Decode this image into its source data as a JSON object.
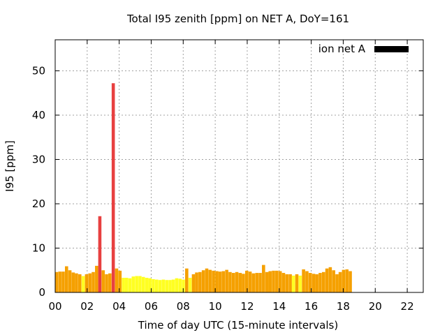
{
  "chart_data": {
    "type": "bar",
    "title": "Total I95 zenith [ppm] on NET A, DoY=161",
    "xlabel": "Time of day UTC (15-minute intervals)",
    "ylabel": "I95 [ppm]",
    "xlim": [
      0,
      23
    ],
    "ylim": [
      0,
      57
    ],
    "x_ticks": [
      "00",
      "02",
      "04",
      "06",
      "08",
      "10",
      "12",
      "14",
      "16",
      "18",
      "20",
      "22"
    ],
    "y_ticks": [
      "0",
      "10",
      "20",
      "30",
      "40",
      "50"
    ],
    "grid": true,
    "legend": {
      "label": "ion net A",
      "placement": "top-right",
      "swatch_color": "#000000"
    },
    "bar_width_hours": 0.2,
    "colors": {
      "high": "#e84040",
      "medium": "#f5a000",
      "low": "#ffff22"
    },
    "bars": [
      {
        "x": 0.08,
        "value": 4.6,
        "level": "medium"
      },
      {
        "x": 0.29,
        "value": 4.7,
        "level": "medium"
      },
      {
        "x": 0.5,
        "value": 4.7,
        "level": "medium"
      },
      {
        "x": 0.71,
        "value": 5.9,
        "level": "medium"
      },
      {
        "x": 0.92,
        "value": 5.0,
        "level": "medium"
      },
      {
        "x": 1.13,
        "value": 4.5,
        "level": "medium"
      },
      {
        "x": 1.33,
        "value": 4.3,
        "level": "medium"
      },
      {
        "x": 1.54,
        "value": 4.1,
        "level": "medium"
      },
      {
        "x": 1.75,
        "value": 3.7,
        "level": "low"
      },
      {
        "x": 1.96,
        "value": 4.1,
        "level": "medium"
      },
      {
        "x": 2.17,
        "value": 4.3,
        "level": "medium"
      },
      {
        "x": 2.38,
        "value": 4.6,
        "level": "medium"
      },
      {
        "x": 2.59,
        "value": 6.0,
        "level": "medium"
      },
      {
        "x": 2.79,
        "value": 17.2,
        "level": "high"
      },
      {
        "x": 3.0,
        "value": 5.0,
        "level": "medium"
      },
      {
        "x": 3.21,
        "value": 4.1,
        "level": "medium"
      },
      {
        "x": 3.42,
        "value": 4.3,
        "level": "medium"
      },
      {
        "x": 3.63,
        "value": 47.2,
        "level": "high"
      },
      {
        "x": 3.84,
        "value": 5.4,
        "level": "medium"
      },
      {
        "x": 4.05,
        "value": 4.9,
        "level": "medium"
      },
      {
        "x": 4.26,
        "value": 3.3,
        "level": "low"
      },
      {
        "x": 4.46,
        "value": 3.3,
        "level": "low"
      },
      {
        "x": 4.67,
        "value": 3.2,
        "level": "low"
      },
      {
        "x": 4.88,
        "value": 3.6,
        "level": "low"
      },
      {
        "x": 5.09,
        "value": 3.7,
        "level": "low"
      },
      {
        "x": 5.3,
        "value": 3.7,
        "level": "low"
      },
      {
        "x": 5.51,
        "value": 3.5,
        "level": "low"
      },
      {
        "x": 5.72,
        "value": 3.3,
        "level": "low"
      },
      {
        "x": 5.92,
        "value": 3.2,
        "level": "low"
      },
      {
        "x": 6.13,
        "value": 3.0,
        "level": "low"
      },
      {
        "x": 6.34,
        "value": 2.9,
        "level": "low"
      },
      {
        "x": 6.55,
        "value": 2.8,
        "level": "low"
      },
      {
        "x": 6.76,
        "value": 2.9,
        "level": "low"
      },
      {
        "x": 6.97,
        "value": 2.8,
        "level": "low"
      },
      {
        "x": 7.18,
        "value": 2.8,
        "level": "low"
      },
      {
        "x": 7.38,
        "value": 2.9,
        "level": "low"
      },
      {
        "x": 7.59,
        "value": 3.2,
        "level": "low"
      },
      {
        "x": 7.8,
        "value": 3.1,
        "level": "low"
      },
      {
        "x": 8.01,
        "value": 2.9,
        "level": "low"
      },
      {
        "x": 8.22,
        "value": 5.4,
        "level": "medium"
      },
      {
        "x": 8.43,
        "value": 3.3,
        "level": "low"
      },
      {
        "x": 8.64,
        "value": 4.1,
        "level": "medium"
      },
      {
        "x": 8.84,
        "value": 4.5,
        "level": "medium"
      },
      {
        "x": 9.05,
        "value": 4.6,
        "level": "medium"
      },
      {
        "x": 9.26,
        "value": 5.0,
        "level": "medium"
      },
      {
        "x": 9.47,
        "value": 5.4,
        "level": "medium"
      },
      {
        "x": 9.68,
        "value": 5.1,
        "level": "medium"
      },
      {
        "x": 9.89,
        "value": 4.9,
        "level": "medium"
      },
      {
        "x": 10.1,
        "value": 4.8,
        "level": "medium"
      },
      {
        "x": 10.3,
        "value": 4.7,
        "level": "medium"
      },
      {
        "x": 10.51,
        "value": 4.8,
        "level": "medium"
      },
      {
        "x": 10.72,
        "value": 5.1,
        "level": "medium"
      },
      {
        "x": 10.93,
        "value": 4.6,
        "level": "medium"
      },
      {
        "x": 11.14,
        "value": 4.4,
        "level": "medium"
      },
      {
        "x": 11.35,
        "value": 4.6,
        "level": "medium"
      },
      {
        "x": 11.56,
        "value": 4.4,
        "level": "medium"
      },
      {
        "x": 11.76,
        "value": 4.2,
        "level": "medium"
      },
      {
        "x": 11.97,
        "value": 4.9,
        "level": "medium"
      },
      {
        "x": 12.18,
        "value": 4.7,
        "level": "medium"
      },
      {
        "x": 12.39,
        "value": 4.3,
        "level": "medium"
      },
      {
        "x": 12.6,
        "value": 4.4,
        "level": "medium"
      },
      {
        "x": 12.81,
        "value": 4.4,
        "level": "medium"
      },
      {
        "x": 13.02,
        "value": 6.2,
        "level": "medium"
      },
      {
        "x": 13.23,
        "value": 4.6,
        "level": "medium"
      },
      {
        "x": 13.43,
        "value": 4.8,
        "level": "medium"
      },
      {
        "x": 13.64,
        "value": 4.9,
        "level": "medium"
      },
      {
        "x": 13.85,
        "value": 4.9,
        "level": "medium"
      },
      {
        "x": 14.06,
        "value": 4.8,
        "level": "medium"
      },
      {
        "x": 14.27,
        "value": 4.4,
        "level": "medium"
      },
      {
        "x": 14.48,
        "value": 4.1,
        "level": "medium"
      },
      {
        "x": 14.69,
        "value": 4.1,
        "level": "medium"
      },
      {
        "x": 14.89,
        "value": 3.8,
        "level": "low"
      },
      {
        "x": 15.1,
        "value": 4.1,
        "level": "medium"
      },
      {
        "x": 15.31,
        "value": 3.8,
        "level": "low"
      },
      {
        "x": 15.52,
        "value": 5.2,
        "level": "medium"
      },
      {
        "x": 15.73,
        "value": 4.8,
        "level": "medium"
      },
      {
        "x": 15.94,
        "value": 4.4,
        "level": "medium"
      },
      {
        "x": 16.15,
        "value": 4.2,
        "level": "medium"
      },
      {
        "x": 16.35,
        "value": 4.1,
        "level": "medium"
      },
      {
        "x": 16.56,
        "value": 4.4,
        "level": "medium"
      },
      {
        "x": 16.77,
        "value": 4.6,
        "level": "medium"
      },
      {
        "x": 16.98,
        "value": 5.4,
        "level": "medium"
      },
      {
        "x": 17.19,
        "value": 5.7,
        "level": "medium"
      },
      {
        "x": 17.4,
        "value": 5.0,
        "level": "medium"
      },
      {
        "x": 17.61,
        "value": 4.1,
        "level": "medium"
      },
      {
        "x": 17.81,
        "value": 4.6,
        "level": "medium"
      },
      {
        "x": 18.02,
        "value": 5.1,
        "level": "medium"
      },
      {
        "x": 18.23,
        "value": 5.2,
        "level": "medium"
      },
      {
        "x": 18.44,
        "value": 4.8,
        "level": "medium"
      }
    ]
  }
}
